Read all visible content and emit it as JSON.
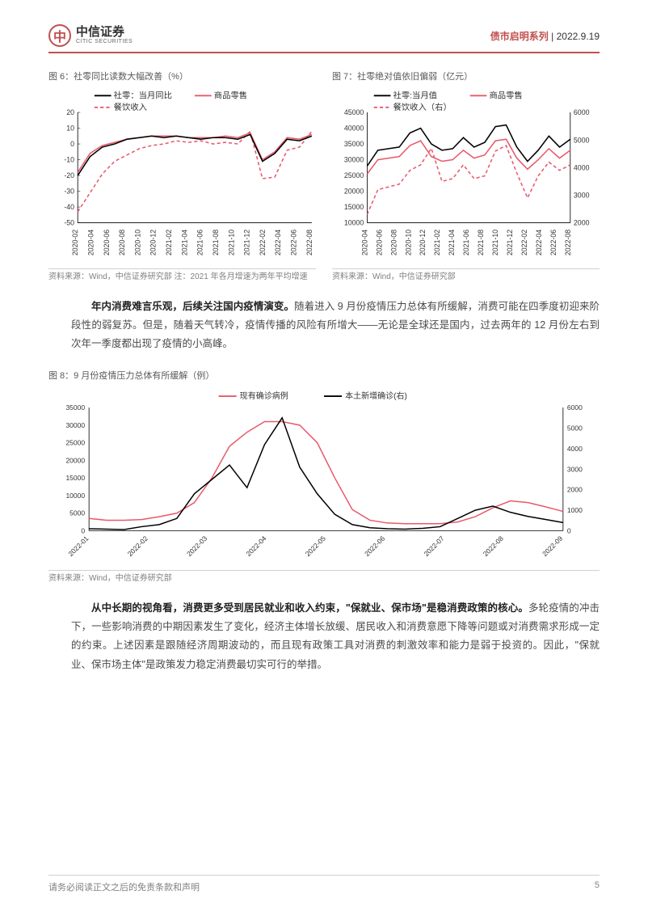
{
  "header": {
    "logo_cn": "中信证券",
    "logo_en": "CITIC SECURITIES",
    "series": "债市启明系列",
    "date": "2022.9.19"
  },
  "chart6": {
    "title": "图 6：社零同比读数大幅改善（%）",
    "type": "line",
    "source": "资料来源：Wind，中信证券研究部  注：2021 年各月增速为两年平均增速",
    "legend": [
      {
        "label": "社零：当月同比",
        "color": "#000000",
        "dash": "none"
      },
      {
        "label": "商品零售",
        "color": "#e85a6b",
        "dash": "none"
      },
      {
        "label": "餐饮收入",
        "color": "#e85a6b",
        "dash": "4,3"
      }
    ],
    "x_labels": [
      "2020-02",
      "2020-04",
      "2020-06",
      "2020-08",
      "2020-10",
      "2020-12",
      "2021-02",
      "2021-04",
      "2021-06",
      "2021-08",
      "2021-10",
      "2021-12",
      "2022-02",
      "2022-04",
      "2022-06",
      "2022-08"
    ],
    "ylim": [
      -50,
      20
    ],
    "ytick_step": 10,
    "series": {
      "shezheng": [
        -20,
        -8,
        -2,
        0,
        3,
        4,
        5,
        4,
        5,
        4,
        3,
        4,
        4,
        3,
        6,
        -11,
        -6,
        3,
        2,
        5
      ],
      "shangpin": [
        -18,
        -6,
        -1,
        1,
        3,
        4,
        5,
        5,
        5,
        4,
        4,
        4,
        5,
        4,
        7,
        -10,
        -5,
        4,
        3,
        6
      ],
      "canyin": [
        -43,
        -31,
        -19,
        -11,
        -7,
        -3,
        -1,
        0,
        2,
        1,
        2,
        0,
        1,
        0,
        8,
        -22,
        -21,
        -4,
        -2,
        8
      ]
    },
    "background_color": "#ffffff",
    "grid_color": "#e8e8e8",
    "label_fontsize": 9
  },
  "chart7": {
    "title": "图 7：社零绝对值依旧偏弱（亿元）",
    "type": "line_dual",
    "source": "资料来源：Wind，中信证券研究部",
    "legend": [
      {
        "label": "社零:当月值",
        "color": "#000000",
        "dash": "none"
      },
      {
        "label": "商品零售",
        "color": "#e85a6b",
        "dash": "none"
      },
      {
        "label": "餐饮收入（右）",
        "color": "#e85a6b",
        "dash": "4,3"
      }
    ],
    "x_labels": [
      "2020-04",
      "2020-06",
      "2020-08",
      "2020-10",
      "2020-12",
      "2021-02",
      "2021-04",
      "2021-06",
      "2021-08",
      "2021-10",
      "2021-12",
      "2022-02",
      "2022-04",
      "2022-06",
      "2022-08"
    ],
    "ylim_left": [
      10000,
      45000
    ],
    "ytick_step_left": 5000,
    "ylim_right": [
      2000,
      6000
    ],
    "ytick_step_right": 1000,
    "series": {
      "shezheng": [
        28000,
        33000,
        33500,
        34000,
        38500,
        40000,
        35000,
        33000,
        33500,
        37000,
        34000,
        35500,
        40500,
        41000,
        34000,
        29500,
        33000,
        37500,
        34000,
        36500
      ],
      "shangpin": [
        25500,
        30000,
        30500,
        31000,
        34500,
        36000,
        31000,
        29500,
        30000,
        33000,
        30500,
        31500,
        36000,
        36500,
        30500,
        27000,
        30000,
        33500,
        30500,
        33000
      ],
      "canyin": [
        2300,
        3200,
        3300,
        3400,
        3900,
        4100,
        4700,
        3500,
        3600,
        4100,
        3600,
        3700,
        4600,
        4800,
        3800,
        2900,
        3700,
        4200,
        3900,
        4100
      ]
    },
    "background_color": "#ffffff",
    "grid_color": "#e8e8e8",
    "label_fontsize": 9
  },
  "para1": {
    "bold": "年内消费难言乐观，后续关注国内疫情演变。",
    "rest": "随着进入 9 月份疫情压力总体有所缓解，消费可能在四季度初迎来阶段性的弱复苏。但是，随着天气转冷，疫情传播的风险有所增大——无论是全球还是国内，过去两年的 12 月份左右到次年一季度都出现了疫情的小高峰。"
  },
  "chart8": {
    "title": "图 8：9 月份疫情压力总体有所缓解（例）",
    "type": "line_dual",
    "source": "资料来源：Wind，中信证券研究部",
    "legend": [
      {
        "label": "现有确诊病例",
        "color": "#e85a6b",
        "dash": "none"
      },
      {
        "label": "本土新增确诊(右)",
        "color": "#000000",
        "dash": "none"
      }
    ],
    "x_labels": [
      "2022-01",
      "2022-02",
      "2022-03",
      "2022-04",
      "2022-05",
      "2022-06",
      "2022-07",
      "2022-08",
      "2022-09"
    ],
    "ylim_left": [
      0,
      35000
    ],
    "ytick_step_left": 5000,
    "ylim_right": [
      0,
      6000
    ],
    "ytick_step_right": 1000,
    "series": {
      "existing": [
        3500,
        3000,
        3000,
        3200,
        4000,
        5000,
        8000,
        15000,
        24000,
        28000,
        31000,
        31000,
        30000,
        25000,
        15000,
        6000,
        3000,
        2200,
        2000,
        2000,
        2000,
        2500,
        4000,
        6500,
        8500,
        8000,
        6800,
        5500
      ],
      "new_local": [
        100,
        80,
        60,
        200,
        300,
        600,
        1800,
        2500,
        3200,
        2100,
        4200,
        5500,
        3100,
        1800,
        800,
        300,
        150,
        100,
        80,
        120,
        200,
        600,
        1000,
        1200,
        900,
        700,
        550,
        400
      ]
    },
    "background_color": "#ffffff",
    "grid_color": "#e8e8e8",
    "label_fontsize": 9
  },
  "para2": {
    "bold": "从中长期的视角看，消费更多受到居民就业和收入约束，\"保就业、保市场\"是稳消费政策的核心。",
    "rest": "多轮疫情的冲击下，一些影响消费的中期因素发生了变化，经济主体增长放缓、居民收入和消费意愿下降等问题或对消费需求形成一定的约束。上述因素是跟随经济周期波动的，而且现有政策工具对消费的刺激效率和能力是弱于投资的。因此，\"保就业、保市场主体\"是政策发力稳定消费最切实可行的举措。"
  },
  "footer": {
    "disclaimer": "请务必阅读正文之后的免责条款和声明",
    "page": "5"
  }
}
